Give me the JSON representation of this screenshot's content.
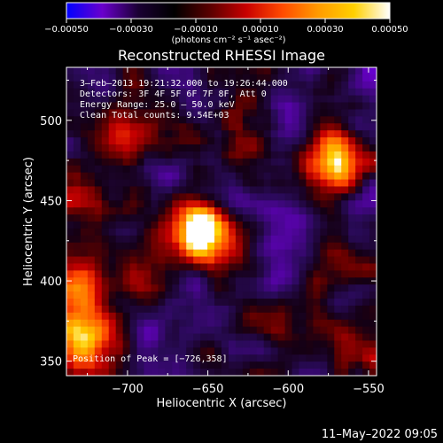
{
  "chart_data": {
    "type": "heatmap",
    "title": "Reconstructed RHESSI Image",
    "xlabel": "Heliocentric X (arcsec)",
    "ylabel": "Heliocentric Y (arcsec)",
    "xlim": [
      -738,
      -545
    ],
    "ylim": [
      341,
      533
    ],
    "xticks": [
      -700,
      -650,
      -600,
      -550
    ],
    "yticks": [
      350,
      400,
      450,
      500
    ],
    "xtick_labels": [
      "−700",
      "−650",
      "−600",
      "−550"
    ],
    "ytick_labels": [
      "350",
      "400",
      "450",
      "500"
    ],
    "colorbar": {
      "label": "(photons cm⁻² s⁻¹ asec⁻²)",
      "range": [
        -0.0005,
        0.0005
      ],
      "ticks": [
        -0.0005,
        -0.0003,
        -0.0001,
        0.0001,
        0.0003,
        0.0005
      ],
      "tick_labels": [
        "−0.00050",
        "−0.00030",
        "−0.00010",
        "0.00010",
        "0.00030",
        "0.00050"
      ],
      "colors": [
        "#0000ff",
        "#6a00cc",
        "#1a0033",
        "#000000",
        "#5a0000",
        "#c80000",
        "#ff4a00",
        "#ff9a00",
        "#ffd000",
        "#ffffff"
      ]
    },
    "hot_spots": [
      {
        "x": -726,
        "y": 358,
        "level": 1.0
      },
      {
        "x": -735,
        "y": 395,
        "level": 0.85
      },
      {
        "x": -730,
        "y": 455,
        "level": 0.6
      },
      {
        "x": -660,
        "y": 435,
        "level": 0.75
      },
      {
        "x": -650,
        "y": 425,
        "level": 0.65
      },
      {
        "x": -580,
        "y": 485,
        "level": 0.6
      },
      {
        "x": -570,
        "y": 470,
        "level": 0.55
      },
      {
        "x": -700,
        "y": 490,
        "level": 0.45
      },
      {
        "x": -630,
        "y": 490,
        "level": 0.45
      },
      {
        "x": -600,
        "y": 380,
        "level": 0.35
      },
      {
        "x": -550,
        "y": 355,
        "level": 0.4
      },
      {
        "x": -690,
        "y": 395,
        "level": 0.35
      },
      {
        "x": -560,
        "y": 410,
        "level": 0.35
      }
    ],
    "cold_spots": [
      {
        "x": -600,
        "y": 498,
        "level": 0.8
      },
      {
        "x": -690,
        "y": 365,
        "level": 0.6
      },
      {
        "x": -610,
        "y": 400,
        "level": 0.5
      },
      {
        "x": -680,
        "y": 470,
        "level": 0.45
      },
      {
        "x": -600,
        "y": 440,
        "level": 0.45
      }
    ]
  },
  "annotations": {
    "time_range": "3–Feb–2013 19:21:32.000 to 19:26:44.000",
    "detectors": "Detectors: 3F 4F 5F 6F 7F 8F, Att 0",
    "energy_range": "Energy Range: 25.0 – 50.0 keV",
    "method_counts": "Clean     Total counts: 9.54E+03",
    "peak_position": "Position of Peak = [−726,358]"
  },
  "footer": {
    "date": "11–May–2022 09:05"
  }
}
